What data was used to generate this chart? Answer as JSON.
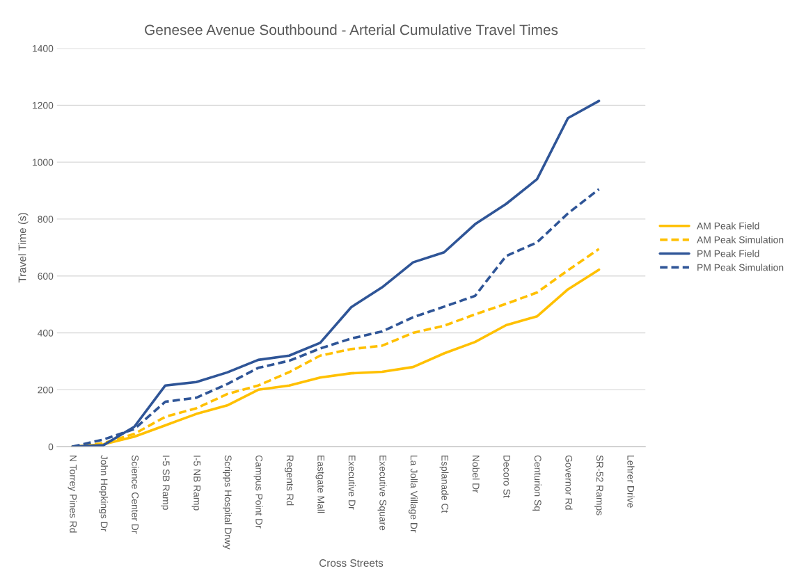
{
  "chart_data": {
    "type": "line",
    "title": "Genesee Avenue Southbound - Arterial Cumulative Travel Times",
    "xlabel": "Cross Streets",
    "ylabel": "Travel Time (s)",
    "categories": [
      "N Torrey Pines Rd",
      "John Hopkings Dr",
      "Science Center Dr",
      "I-5 SB Ramp",
      "I-5 NB Ramp",
      "Scripps Hospital Drwy",
      "Campus Point Dr",
      "Regents Rd",
      "Eastgate Mall",
      "Executive Dr",
      "Executive Square",
      "La Jolla Village Dr",
      "Esplanade Ct",
      "Nobel Dr",
      "Decoro St",
      "Centurion Sq",
      "Governor Rd",
      "SR-52 Ramps",
      "Lehrer Drive"
    ],
    "series": [
      {
        "name": "AM Peak Field",
        "color": "#ffc000",
        "line_style": "solid",
        "values": [
          0,
          8,
          35,
          75,
          115,
          145,
          200,
          215,
          243,
          258,
          263,
          280,
          328,
          368,
          427,
          458,
          553,
          622,
          null
        ]
      },
      {
        "name": "AM Peak Simulation",
        "color": "#ffc000",
        "line_style": "dashed",
        "values": [
          0,
          12,
          45,
          105,
          135,
          185,
          215,
          262,
          320,
          343,
          355,
          400,
          425,
          465,
          502,
          542,
          620,
          695,
          null
        ]
      },
      {
        "name": "PM Peak Field",
        "color": "#2f5597",
        "line_style": "solid",
        "values": [
          0,
          5,
          70,
          215,
          227,
          261,
          305,
          320,
          365,
          490,
          560,
          648,
          683,
          782,
          853,
          940,
          1155,
          1215,
          null
        ]
      },
      {
        "name": "PM Peak Simulation",
        "color": "#2f5597",
        "line_style": "dashed",
        "values": [
          0,
          25,
          62,
          158,
          172,
          220,
          277,
          302,
          345,
          380,
          405,
          455,
          492,
          530,
          670,
          718,
          820,
          905,
          null
        ]
      }
    ],
    "ylim": [
      0,
      1400
    ],
    "yticks": [
      0,
      200,
      400,
      600,
      800,
      1000,
      1200,
      1400
    ],
    "grid": "y",
    "legend": "right",
    "marker": "none"
  }
}
